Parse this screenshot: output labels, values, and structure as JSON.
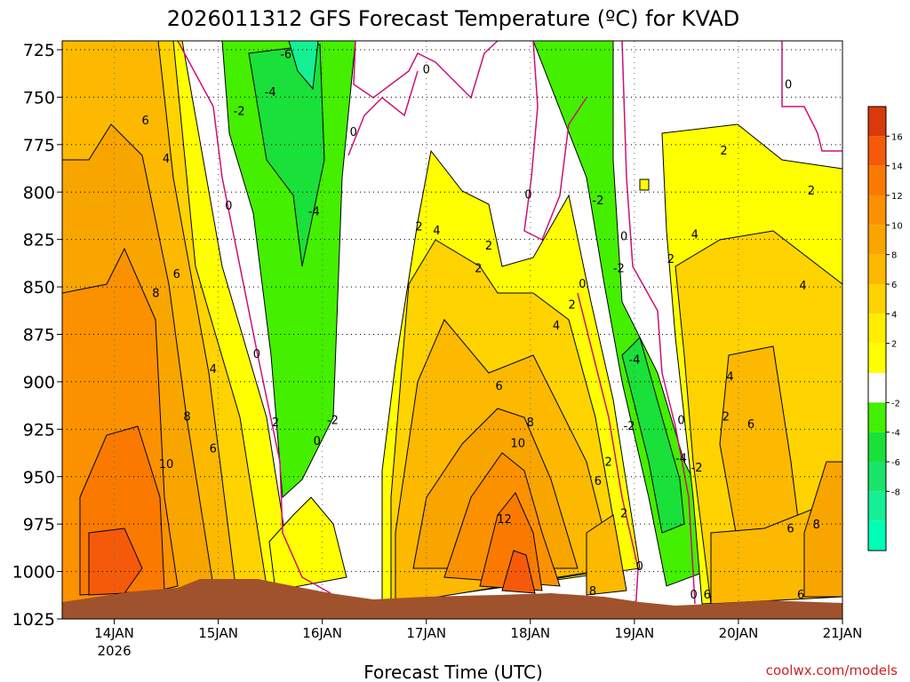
{
  "chart_data": {
    "type": "heatmap",
    "title": "2026011312 GFS Forecast Temperature (ºC) for KVAD",
    "xlabel": "Forecast Time (UTC)",
    "ylabel": "",
    "credit": "coolwx.com/models",
    "y_axis": {
      "scale": "pressure (reversed)",
      "range": [
        725,
        1025
      ],
      "ticks": [
        "725",
        "750",
        "775",
        "800",
        "825",
        "850",
        "875",
        "900",
        "925",
        "950",
        "975",
        "1000",
        "1025"
      ]
    },
    "x_axis": {
      "range_days": [
        "13JAN 12Z",
        "21JAN 00Z"
      ],
      "ticks": [
        {
          "day": 14,
          "label": "14JAN",
          "sub": "2026"
        },
        {
          "day": 15,
          "label": "15JAN",
          "sub": ""
        },
        {
          "day": 16,
          "label": "16JAN",
          "sub": ""
        },
        {
          "day": 17,
          "label": "17JAN",
          "sub": ""
        },
        {
          "day": 18,
          "label": "18JAN",
          "sub": ""
        },
        {
          "day": 19,
          "label": "19JAN",
          "sub": ""
        },
        {
          "day": 20,
          "label": "20JAN",
          "sub": ""
        },
        {
          "day": 21,
          "label": "21JAN",
          "sub": ""
        }
      ]
    },
    "grid": true,
    "legend_position": "right",
    "colorbar": {
      "labels": [
        "16",
        "14",
        "12",
        "10",
        "8",
        "6",
        "4",
        "2",
        "-2",
        "-4",
        "-6",
        "-8"
      ],
      "bins": [
        {
          "color": "#d93a0c"
        },
        {
          "color": "#f55a0a"
        },
        {
          "color": "#fa7a00"
        },
        {
          "color": "#fc9100"
        },
        {
          "color": "#f9a500"
        },
        {
          "color": "#fcb900"
        },
        {
          "color": "#ffd300"
        },
        {
          "color": "#ffee00"
        },
        {
          "color": "#ffff00"
        },
        {
          "color": "#ffffff"
        },
        {
          "color": "#44ef00"
        },
        {
          "color": "#1ae03a"
        },
        {
          "color": "#18e46a"
        },
        {
          "color": "#16f094"
        },
        {
          "color": "#00ffb4"
        }
      ]
    },
    "contour_labels": [
      {
        "d": 14.3,
        "p": 762,
        "v": "6"
      },
      {
        "d": 14.5,
        "p": 782,
        "v": "4"
      },
      {
        "d": 14.6,
        "p": 843,
        "v": "6"
      },
      {
        "d": 14.4,
        "p": 853,
        "v": "8"
      },
      {
        "d": 14.5,
        "p": 943,
        "v": "10"
      },
      {
        "d": 14.7,
        "p": 918,
        "v": "8"
      },
      {
        "d": 14.95,
        "p": 935,
        "v": "6"
      },
      {
        "d": 14.95,
        "p": 893,
        "v": "4"
      },
      {
        "d": 15.55,
        "p": 921,
        "v": "2"
      },
      {
        "d": 15.37,
        "p": 885,
        "v": "0"
      },
      {
        "d": 15.1,
        "p": 807,
        "v": "0"
      },
      {
        "d": 15.2,
        "p": 757,
        "v": "-2"
      },
      {
        "d": 15.5,
        "p": 747,
        "v": "-4"
      },
      {
        "d": 15.65,
        "p": 727,
        "v": "-6"
      },
      {
        "d": 15.92,
        "p": 810,
        "v": "-4"
      },
      {
        "d": 16.1,
        "p": 920,
        "v": "-2"
      },
      {
        "d": 15.95,
        "p": 931,
        "v": "0"
      },
      {
        "d": 16.3,
        "p": 768,
        "v": "0"
      },
      {
        "d": 16.93,
        "p": 818,
        "v": "2"
      },
      {
        "d": 17.1,
        "p": 820,
        "v": "4"
      },
      {
        "d": 17.5,
        "p": 840,
        "v": "2"
      },
      {
        "d": 17.6,
        "p": 828,
        "v": "2"
      },
      {
        "d": 17.0,
        "p": 735,
        "v": "0"
      },
      {
        "d": 17.98,
        "p": 801,
        "v": "0"
      },
      {
        "d": 18.65,
        "p": 804,
        "v": "-2"
      },
      {
        "d": 17.7,
        "p": 902,
        "v": "6"
      },
      {
        "d": 18.0,
        "p": 921,
        "v": "8"
      },
      {
        "d": 17.88,
        "p": 932,
        "v": "10"
      },
      {
        "d": 17.75,
        "p": 972,
        "v": "12"
      },
      {
        "d": 18.25,
        "p": 870,
        "v": "4"
      },
      {
        "d": 18.4,
        "p": 859,
        "v": "2"
      },
      {
        "d": 18.5,
        "p": 848,
        "v": "0"
      },
      {
        "d": 18.9,
        "p": 823,
        "v": "0"
      },
      {
        "d": 18.85,
        "p": 840,
        "v": "-2"
      },
      {
        "d": 19.0,
        "p": 888,
        "v": "-4"
      },
      {
        "d": 18.95,
        "p": 923,
        "v": "-2"
      },
      {
        "d": 18.75,
        "p": 942,
        "v": "2"
      },
      {
        "d": 18.65,
        "p": 952,
        "v": "6"
      },
      {
        "d": 18.9,
        "p": 969,
        "v": "2"
      },
      {
        "d": 19.05,
        "p": 997,
        "v": "0"
      },
      {
        "d": 18.6,
        "p": 1010,
        "v": "8"
      },
      {
        "d": 19.45,
        "p": 940,
        "v": "-4"
      },
      {
        "d": 19.6,
        "p": 945,
        "v": "-2"
      },
      {
        "d": 19.45,
        "p": 920,
        "v": "0"
      },
      {
        "d": 19.88,
        "p": 918,
        "v": "2"
      },
      {
        "d": 19.92,
        "p": 897,
        "v": "4"
      },
      {
        "d": 19.35,
        "p": 835,
        "v": "2"
      },
      {
        "d": 19.58,
        "p": 822,
        "v": "4"
      },
      {
        "d": 19.86,
        "p": 778,
        "v": "2"
      },
      {
        "d": 20.7,
        "p": 799,
        "v": "2"
      },
      {
        "d": 20.62,
        "p": 849,
        "v": "4"
      },
      {
        "d": 20.12,
        "p": 922,
        "v": "6"
      },
      {
        "d": 20.5,
        "p": 977,
        "v": "6"
      },
      {
        "d": 20.75,
        "p": 975,
        "v": "8"
      },
      {
        "d": 20.6,
        "p": 1012,
        "v": "6"
      },
      {
        "d": 19.57,
        "p": 1012,
        "v": "0"
      },
      {
        "d": 19.7,
        "p": 1012,
        "v": "6"
      },
      {
        "d": 20.48,
        "p": 743,
        "v": "0"
      }
    ]
  }
}
